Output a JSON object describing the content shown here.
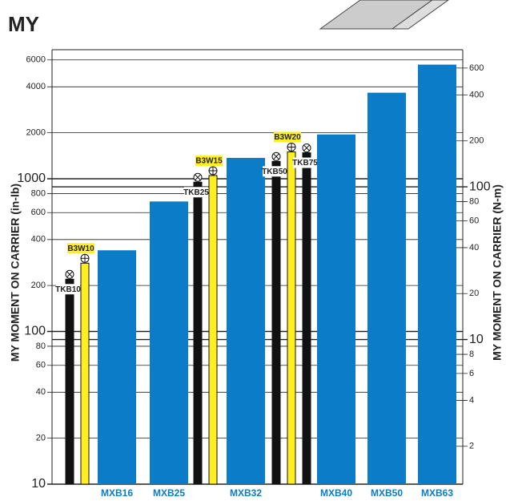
{
  "chart_data": {
    "type": "bar",
    "title": "MY",
    "y_label": "MY MOMENT ON CARRIER (in-lb)",
    "y2_label": "MY MOMENT ON CARRIER (N-m)",
    "log_scale": true,
    "grid": true,
    "categories": [
      "TKB10",
      "B3W10",
      "MXB16",
      "MXB25",
      "TKB25",
      "B3W15",
      "MXB32",
      "TKB50",
      "B3W20",
      "TKB75",
      "MXB40",
      "MXB50",
      "MXB63"
    ],
    "values": [
      220,
      280,
      340,
      710,
      950,
      1050,
      1370,
      1300,
      1500,
      1480,
      1950,
      3660,
      5590
    ],
    "colors": [
      "#111111",
      "#ffee22",
      "#0a7cc8",
      "#0a7cc8",
      "#111111",
      "#ffee22",
      "#0a7cc8",
      "#111111",
      "#ffee22",
      "#111111",
      "#0a7cc8",
      "#0a7cc8",
      "#0a7cc8"
    ],
    "ylim": [
      10,
      7000
    ],
    "yticks": [
      10,
      20,
      40,
      60,
      80,
      100,
      200,
      400,
      600,
      800,
      1000,
      2000,
      4000,
      6000
    ],
    "y2lim": [
      1.13,
      791
    ],
    "y2ticks": [
      2,
      4,
      6,
      8,
      10,
      20,
      40,
      60,
      80,
      100,
      200,
      400,
      600
    ]
  }
}
